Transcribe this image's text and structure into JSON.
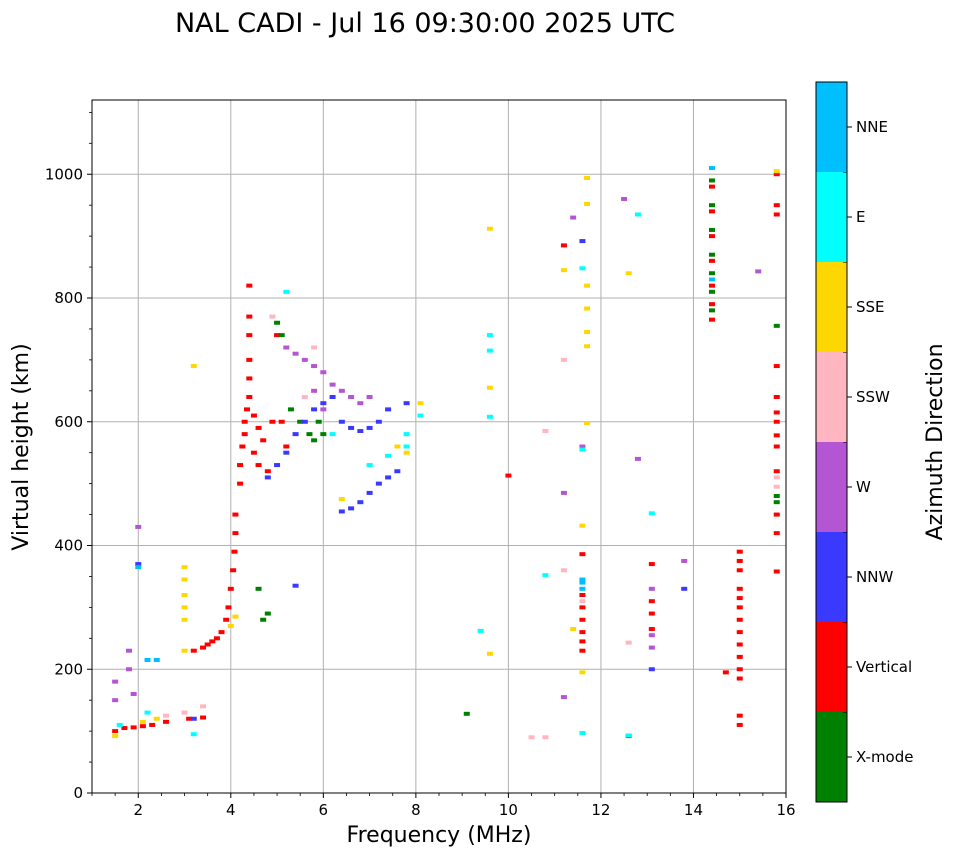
{
  "chart_data": {
    "type": "scatter",
    "title": "NAL CADI - Jul 16 09:30:00 2025 UTC",
    "xlabel": "Frequency (MHz)",
    "ylabel": "Virtual height (km)",
    "xlim": [
      1,
      16
    ],
    "ylim": [
      0,
      1120
    ],
    "xticks": [
      2,
      4,
      6,
      8,
      10,
      12,
      14,
      16
    ],
    "yticks": [
      0,
      200,
      400,
      600,
      800,
      1000
    ],
    "grid": true,
    "colorbar": {
      "label": "Azimuth Direction",
      "categories": [
        {
          "name": "X-mode",
          "color": "#008000"
        },
        {
          "name": "Vertical",
          "color": "#ff0000"
        },
        {
          "name": "NNW",
          "color": "#3a3aff"
        },
        {
          "name": "W",
          "color": "#b455d4"
        },
        {
          "name": "SSW",
          "color": "#ffb6c1"
        },
        {
          "name": "SSE",
          "color": "#ffd700"
        },
        {
          "name": "E",
          "color": "#00ffff"
        },
        {
          "name": "NNE",
          "color": "#00bfff"
        }
      ]
    },
    "series": [
      {
        "name": "Vertical",
        "points": [
          [
            1.5,
            100
          ],
          [
            1.7,
            105
          ],
          [
            1.9,
            106
          ],
          [
            2.1,
            108
          ],
          [
            2.3,
            110
          ],
          [
            2.6,
            115
          ],
          [
            3.1,
            120
          ],
          [
            3.4,
            122
          ],
          [
            3.2,
            230
          ],
          [
            3.4,
            235
          ],
          [
            3.5,
            240
          ],
          [
            3.6,
            245
          ],
          [
            3.7,
            250
          ],
          [
            3.8,
            260
          ],
          [
            3.9,
            280
          ],
          [
            3.95,
            300
          ],
          [
            4.0,
            330
          ],
          [
            4.05,
            360
          ],
          [
            4.08,
            390
          ],
          [
            4.1,
            420
          ],
          [
            4.1,
            450
          ],
          [
            4.2,
            500
          ],
          [
            4.2,
            530
          ],
          [
            4.25,
            560
          ],
          [
            4.3,
            580
          ],
          [
            4.3,
            600
          ],
          [
            4.35,
            620
          ],
          [
            4.4,
            640
          ],
          [
            4.5,
            610
          ],
          [
            4.6,
            590
          ],
          [
            4.7,
            570
          ],
          [
            4.5,
            550
          ],
          [
            4.6,
            530
          ],
          [
            4.8,
            520
          ],
          [
            4.9,
            600
          ],
          [
            4.4,
            670
          ],
          [
            4.4,
            700
          ],
          [
            4.4,
            740
          ],
          [
            4.4,
            770
          ],
          [
            4.4,
            820
          ],
          [
            5.0,
            740
          ],
          [
            5.1,
            600
          ],
          [
            5.2,
            560
          ],
          [
            10.0,
            513
          ],
          [
            11.2,
            885
          ],
          [
            11.6,
            230
          ],
          [
            11.6,
            245
          ],
          [
            11.6,
            260
          ],
          [
            11.6,
            280
          ],
          [
            11.6,
            300
          ],
          [
            11.6,
            320
          ],
          [
            11.6,
            386
          ],
          [
            13.1,
            370
          ],
          [
            13.1,
            310
          ],
          [
            13.1,
            290
          ],
          [
            13.1,
            265
          ],
          [
            14.4,
            765
          ],
          [
            14.4,
            790
          ],
          [
            14.4,
            820
          ],
          [
            14.4,
            860
          ],
          [
            14.4,
            900
          ],
          [
            14.4,
            940
          ],
          [
            14.4,
            980
          ],
          [
            15.0,
            360
          ],
          [
            15.0,
            375
          ],
          [
            15.0,
            390
          ],
          [
            15.0,
            330
          ],
          [
            15.0,
            315
          ],
          [
            15.0,
            300
          ],
          [
            15.0,
            280
          ],
          [
            15.0,
            260
          ],
          [
            15.0,
            240
          ],
          [
            15.0,
            220
          ],
          [
            15.0,
            200
          ],
          [
            15.0,
            185
          ],
          [
            15.0,
            125
          ],
          [
            15.0,
            110
          ],
          [
            14.7,
            195
          ],
          [
            15.8,
            358
          ],
          [
            15.8,
            420
          ],
          [
            15.8,
            450
          ],
          [
            15.8,
            520
          ],
          [
            15.8,
            560
          ],
          [
            15.8,
            578
          ],
          [
            15.8,
            600
          ],
          [
            15.8,
            615
          ],
          [
            15.8,
            640
          ],
          [
            15.8,
            690
          ],
          [
            15.8,
            935
          ],
          [
            15.8,
            950
          ],
          [
            15.8,
            1000
          ]
        ]
      },
      {
        "name": "X-mode",
        "points": [
          [
            5.0,
            760
          ],
          [
            5.1,
            740
          ],
          [
            5.3,
            620
          ],
          [
            5.5,
            600
          ],
          [
            5.7,
            580
          ],
          [
            5.8,
            570
          ],
          [
            5.9,
            600
          ],
          [
            6.0,
            580
          ],
          [
            4.6,
            330
          ],
          [
            4.7,
            280
          ],
          [
            4.8,
            290
          ],
          [
            9.1,
            128
          ],
          [
            14.4,
            780
          ],
          [
            14.4,
            810
          ],
          [
            14.4,
            840
          ],
          [
            14.4,
            870
          ],
          [
            14.4,
            910
          ],
          [
            14.4,
            950
          ],
          [
            14.4,
            990
          ],
          [
            15.8,
            470
          ],
          [
            15.8,
            480
          ],
          [
            15.8,
            755
          ]
        ]
      },
      {
        "name": "NNW",
        "points": [
          [
            2.0,
            370
          ],
          [
            3.2,
            120
          ],
          [
            4.8,
            510
          ],
          [
            5.0,
            530
          ],
          [
            5.2,
            550
          ],
          [
            5.4,
            580
          ],
          [
            5.6,
            600
          ],
          [
            5.8,
            620
          ],
          [
            6.0,
            630
          ],
          [
            6.2,
            640
          ],
          [
            6.4,
            600
          ],
          [
            6.6,
            590
          ],
          [
            6.8,
            585
          ],
          [
            7.0,
            590
          ],
          [
            7.2,
            600
          ],
          [
            7.4,
            620
          ],
          [
            7.8,
            630
          ],
          [
            6.4,
            455
          ],
          [
            6.6,
            460
          ],
          [
            6.8,
            470
          ],
          [
            7.0,
            485
          ],
          [
            7.2,
            500
          ],
          [
            7.4,
            510
          ],
          [
            7.6,
            520
          ],
          [
            5.4,
            335
          ],
          [
            13.1,
            200
          ],
          [
            13.8,
            330
          ],
          [
            11.6,
            892
          ],
          [
            12.6,
            92
          ]
        ]
      },
      {
        "name": "W",
        "points": [
          [
            1.5,
            180
          ],
          [
            1.5,
            150
          ],
          [
            1.8,
            200
          ],
          [
            1.8,
            230
          ],
          [
            2.0,
            430
          ],
          [
            1.9,
            160
          ],
          [
            5.6,
            700
          ],
          [
            5.8,
            690
          ],
          [
            6.0,
            680
          ],
          [
            6.2,
            660
          ],
          [
            6.4,
            650
          ],
          [
            6.6,
            640
          ],
          [
            6.8,
            630
          ],
          [
            7.0,
            640
          ],
          [
            5.2,
            720
          ],
          [
            5.4,
            710
          ],
          [
            5.8,
            650
          ],
          [
            6.0,
            620
          ],
          [
            11.2,
            485
          ],
          [
            11.2,
            155
          ],
          [
            12.5,
            960
          ],
          [
            12.8,
            540
          ],
          [
            13.1,
            330
          ],
          [
            13.1,
            255
          ],
          [
            13.1,
            235
          ],
          [
            13.8,
            375
          ],
          [
            15.4,
            843
          ],
          [
            11.4,
            930
          ],
          [
            11.6,
            560
          ]
        ]
      },
      {
        "name": "SSW",
        "points": [
          [
            2.6,
            125
          ],
          [
            3.0,
            130
          ],
          [
            3.4,
            140
          ],
          [
            4.9,
            770
          ],
          [
            5.6,
            640
          ],
          [
            5.8,
            720
          ],
          [
            10.5,
            90
          ],
          [
            10.8,
            90
          ],
          [
            10.8,
            585
          ],
          [
            11.2,
            700
          ],
          [
            11.2,
            360
          ],
          [
            11.6,
            310
          ],
          [
            12.6,
            243
          ],
          [
            15.8,
            510
          ],
          [
            15.8,
            495
          ]
        ]
      },
      {
        "name": "SSE",
        "points": [
          [
            1.5,
            92
          ],
          [
            2.1,
            115
          ],
          [
            2.4,
            120
          ],
          [
            3.0,
            280
          ],
          [
            3.0,
            300
          ],
          [
            3.0,
            320
          ],
          [
            3.0,
            345
          ],
          [
            3.0,
            365
          ],
          [
            3.0,
            230
          ],
          [
            3.2,
            690
          ],
          [
            4.0,
            270
          ],
          [
            4.1,
            285
          ],
          [
            6.4,
            475
          ],
          [
            7.6,
            560
          ],
          [
            7.8,
            550
          ],
          [
            8.1,
            630
          ],
          [
            9.6,
            912
          ],
          [
            9.6,
            655
          ],
          [
            9.6,
            225
          ],
          [
            11.2,
            845
          ],
          [
            11.4,
            265
          ],
          [
            11.6,
            195
          ],
          [
            11.6,
            432
          ],
          [
            11.7,
            994
          ],
          [
            11.7,
            952
          ],
          [
            11.7,
            820
          ],
          [
            11.7,
            783
          ],
          [
            11.7,
            745
          ],
          [
            11.7,
            722
          ],
          [
            11.7,
            598
          ],
          [
            12.6,
            840
          ],
          [
            15.8,
            1005
          ]
        ]
      },
      {
        "name": "E",
        "points": [
          [
            1.6,
            110
          ],
          [
            2.2,
            130
          ],
          [
            3.2,
            95
          ],
          [
            5.2,
            810
          ],
          [
            6.2,
            580
          ],
          [
            7.0,
            530
          ],
          [
            7.4,
            545
          ],
          [
            7.8,
            560
          ],
          [
            7.8,
            580
          ],
          [
            8.1,
            610
          ],
          [
            9.6,
            740
          ],
          [
            9.6,
            715
          ],
          [
            9.6,
            608
          ],
          [
            9.4,
            262
          ],
          [
            10.8,
            352
          ],
          [
            11.6,
            848
          ],
          [
            11.6,
            555
          ],
          [
            11.6,
            97
          ],
          [
            12.6,
            93
          ],
          [
            12.8,
            935
          ],
          [
            13.1,
            452
          ]
        ]
      },
      {
        "name": "NNE",
        "points": [
          [
            2.0,
            365
          ],
          [
            2.2,
            215
          ],
          [
            2.4,
            215
          ],
          [
            11.6,
            330
          ],
          [
            11.6,
            345
          ],
          [
            11.6,
            340
          ],
          [
            14.4,
            830
          ],
          [
            14.4,
            1010
          ]
        ]
      }
    ]
  }
}
